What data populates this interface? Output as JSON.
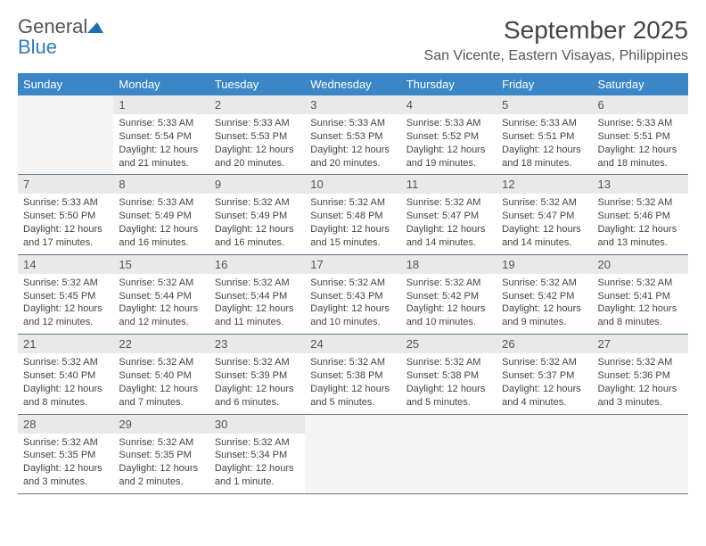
{
  "brand": {
    "name_a": "General",
    "name_b": "Blue",
    "tri_color": "#1f6db3"
  },
  "title": "September 2025",
  "location": "San Vicente, Eastern Visayas, Philippines",
  "colors": {
    "header_bg": "#3b86c7",
    "header_text": "#ffffff",
    "daynum_bg": "#e9e9e9",
    "row_border": "#5b7896",
    "empty_bg": "#f5f5f5"
  },
  "weekdays": [
    "Sunday",
    "Monday",
    "Tuesday",
    "Wednesday",
    "Thursday",
    "Friday",
    "Saturday"
  ],
  "grid": {
    "start_weekday": 1,
    "num_days": 30
  },
  "days": {
    "1": {
      "sunrise": "5:33 AM",
      "sunset": "5:54 PM",
      "daylight": "12 hours and 21 minutes."
    },
    "2": {
      "sunrise": "5:33 AM",
      "sunset": "5:53 PM",
      "daylight": "12 hours and 20 minutes."
    },
    "3": {
      "sunrise": "5:33 AM",
      "sunset": "5:53 PM",
      "daylight": "12 hours and 20 minutes."
    },
    "4": {
      "sunrise": "5:33 AM",
      "sunset": "5:52 PM",
      "daylight": "12 hours and 19 minutes."
    },
    "5": {
      "sunrise": "5:33 AM",
      "sunset": "5:51 PM",
      "daylight": "12 hours and 18 minutes."
    },
    "6": {
      "sunrise": "5:33 AM",
      "sunset": "5:51 PM",
      "daylight": "12 hours and 18 minutes."
    },
    "7": {
      "sunrise": "5:33 AM",
      "sunset": "5:50 PM",
      "daylight": "12 hours and 17 minutes."
    },
    "8": {
      "sunrise": "5:33 AM",
      "sunset": "5:49 PM",
      "daylight": "12 hours and 16 minutes."
    },
    "9": {
      "sunrise": "5:32 AM",
      "sunset": "5:49 PM",
      "daylight": "12 hours and 16 minutes."
    },
    "10": {
      "sunrise": "5:32 AM",
      "sunset": "5:48 PM",
      "daylight": "12 hours and 15 minutes."
    },
    "11": {
      "sunrise": "5:32 AM",
      "sunset": "5:47 PM",
      "daylight": "12 hours and 14 minutes."
    },
    "12": {
      "sunrise": "5:32 AM",
      "sunset": "5:47 PM",
      "daylight": "12 hours and 14 minutes."
    },
    "13": {
      "sunrise": "5:32 AM",
      "sunset": "5:46 PM",
      "daylight": "12 hours and 13 minutes."
    },
    "14": {
      "sunrise": "5:32 AM",
      "sunset": "5:45 PM",
      "daylight": "12 hours and 12 minutes."
    },
    "15": {
      "sunrise": "5:32 AM",
      "sunset": "5:44 PM",
      "daylight": "12 hours and 12 minutes."
    },
    "16": {
      "sunrise": "5:32 AM",
      "sunset": "5:44 PM",
      "daylight": "12 hours and 11 minutes."
    },
    "17": {
      "sunrise": "5:32 AM",
      "sunset": "5:43 PM",
      "daylight": "12 hours and 10 minutes."
    },
    "18": {
      "sunrise": "5:32 AM",
      "sunset": "5:42 PM",
      "daylight": "12 hours and 10 minutes."
    },
    "19": {
      "sunrise": "5:32 AM",
      "sunset": "5:42 PM",
      "daylight": "12 hours and 9 minutes."
    },
    "20": {
      "sunrise": "5:32 AM",
      "sunset": "5:41 PM",
      "daylight": "12 hours and 8 minutes."
    },
    "21": {
      "sunrise": "5:32 AM",
      "sunset": "5:40 PM",
      "daylight": "12 hours and 8 minutes."
    },
    "22": {
      "sunrise": "5:32 AM",
      "sunset": "5:40 PM",
      "daylight": "12 hours and 7 minutes."
    },
    "23": {
      "sunrise": "5:32 AM",
      "sunset": "5:39 PM",
      "daylight": "12 hours and 6 minutes."
    },
    "24": {
      "sunrise": "5:32 AM",
      "sunset": "5:38 PM",
      "daylight": "12 hours and 5 minutes."
    },
    "25": {
      "sunrise": "5:32 AM",
      "sunset": "5:38 PM",
      "daylight": "12 hours and 5 minutes."
    },
    "26": {
      "sunrise": "5:32 AM",
      "sunset": "5:37 PM",
      "daylight": "12 hours and 4 minutes."
    },
    "27": {
      "sunrise": "5:32 AM",
      "sunset": "5:36 PM",
      "daylight": "12 hours and 3 minutes."
    },
    "28": {
      "sunrise": "5:32 AM",
      "sunset": "5:35 PM",
      "daylight": "12 hours and 3 minutes."
    },
    "29": {
      "sunrise": "5:32 AM",
      "sunset": "5:35 PM",
      "daylight": "12 hours and 2 minutes."
    },
    "30": {
      "sunrise": "5:32 AM",
      "sunset": "5:34 PM",
      "daylight": "12 hours and 1 minute."
    }
  },
  "labels": {
    "sunrise": "Sunrise: ",
    "sunset": "Sunset: ",
    "daylight": "Daylight: "
  }
}
